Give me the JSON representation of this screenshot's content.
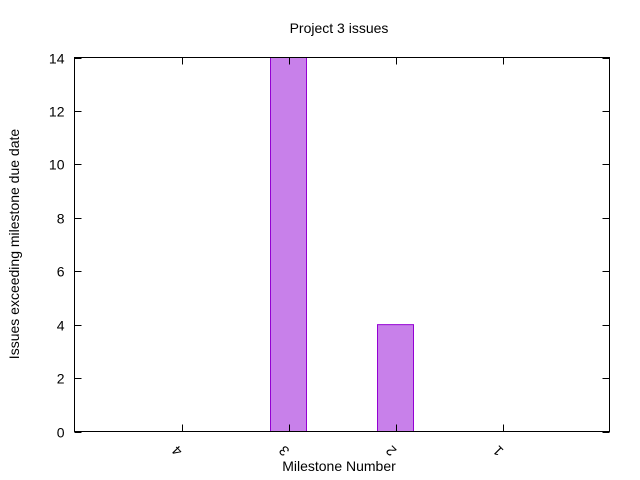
{
  "chart_data": {
    "type": "bar",
    "title": "Project 3 issues",
    "xlabel": "Milestone Number",
    "ylabel": "Issues exceeding milestone due date",
    "categories": [
      "4",
      "3",
      "2",
      "1"
    ],
    "values": [
      0,
      14,
      4,
      0
    ],
    "ylim": [
      0,
      14
    ],
    "yticks": [
      0,
      2,
      4,
      6,
      8,
      10,
      12,
      14
    ],
    "grid": false,
    "legend": "none",
    "bar_color": "#c880ea",
    "bar_edge_color": "#9400d3"
  }
}
